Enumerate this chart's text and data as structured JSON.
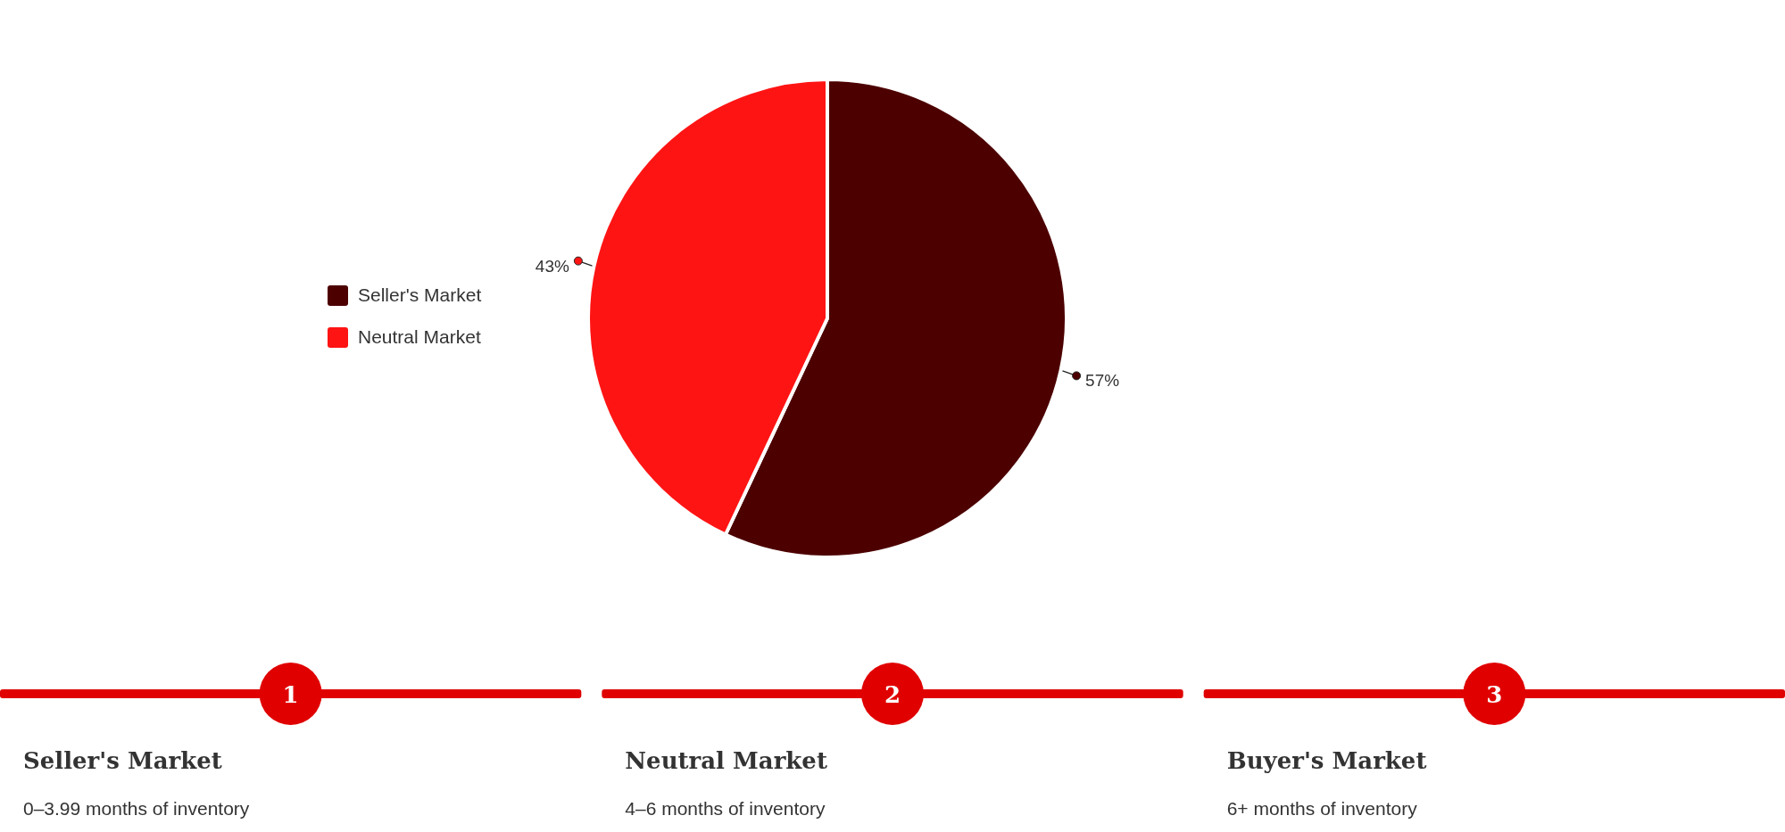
{
  "chart_data": [
    {
      "type": "pie",
      "categories": [
        "Seller's Market",
        "Neutral Market"
      ],
      "values": [
        57,
        43
      ],
      "colors": [
        "#4d0000",
        "#ff1414"
      ],
      "value_labels": [
        "57%",
        "43%"
      ],
      "legend": "left"
    },
    {
      "type": "other",
      "annotations": [
        "1",
        "Seller's Market",
        "0–3.99 months of inventory",
        "2",
        "Neutral Market",
        "4–6 months of inventory",
        "3",
        "Buyer's Market",
        "6+ months of inventory"
      ]
    }
  ]
}
